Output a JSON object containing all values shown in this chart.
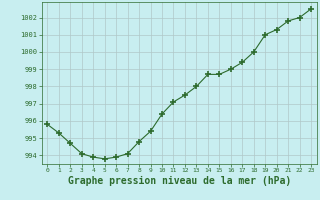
{
  "x": [
    0,
    1,
    2,
    3,
    4,
    5,
    6,
    7,
    8,
    9,
    10,
    11,
    12,
    13,
    14,
    15,
    16,
    17,
    18,
    19,
    20,
    21,
    22,
    23
  ],
  "y": [
    995.8,
    995.3,
    994.7,
    994.1,
    993.9,
    993.8,
    993.9,
    994.1,
    994.8,
    995.4,
    996.4,
    997.1,
    997.5,
    998.0,
    998.7,
    998.7,
    999.0,
    999.4,
    1000.0,
    1001.0,
    1001.3,
    1001.8,
    1002.0,
    1002.5
  ],
  "line_color": "#2d6b2d",
  "marker": "+",
  "marker_size": 4,
  "marker_linewidth": 1.2,
  "bg_color": "#c8eef0",
  "grid_color": "#b0c8c8",
  "xlabel": "Graphe pression niveau de la mer (hPa)",
  "xlabel_fontsize": 7,
  "ylabel_ticks": [
    994,
    995,
    996,
    997,
    998,
    999,
    1000,
    1001,
    1002
  ],
  "xlim": [
    -0.5,
    23.5
  ],
  "ylim": [
    993.5,
    1002.9
  ],
  "xtick_labels": [
    "0",
    "1",
    "2",
    "3",
    "4",
    "5",
    "6",
    "7",
    "8",
    "9",
    "10",
    "11",
    "12",
    "13",
    "14",
    "15",
    "16",
    "17",
    "18",
    "19",
    "20",
    "21",
    "22",
    "23"
  ]
}
